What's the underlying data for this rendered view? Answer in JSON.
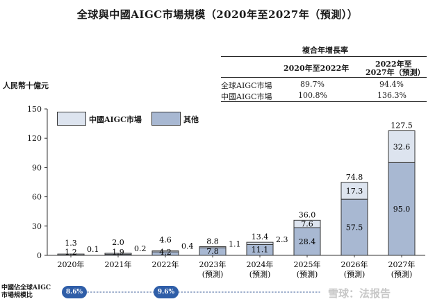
{
  "title": "全球與中國AIGC市場規模（2020年至2027年（預測））",
  "cagr_table": {
    "header": "複合年增長率",
    "col1": "2020年至2022年",
    "col2_line1": "2022年至",
    "col2_line2": "2027年（預測）",
    "rows": [
      {
        "label": "全球AIGC市場",
        "v1": "89.7%",
        "v2": "94.4%"
      },
      {
        "label": "中國AIGC市場",
        "v1": "100.8%",
        "v2": "136.3%"
      }
    ]
  },
  "y_unit": "人民幣十億元",
  "legend": {
    "china": "中國AIGC市場",
    "other": "其他"
  },
  "share": {
    "label_line1": "中國佔全球AIGC",
    "label_line2": "市場規模比",
    "pills": [
      "8.6%",
      "9.6%"
    ]
  },
  "watermark": "雪球：法报告",
  "colors": {
    "china": "#dde4ef",
    "other": "#a8b8d2",
    "stroke": "#333333",
    "pill": "#2f5ea8"
  },
  "chart_data": {
    "type": "bar",
    "stacked": true,
    "categories": [
      "2020年",
      "2021年",
      "2022年",
      "2023年\n(預測)",
      "2024年\n(預測)",
      "2025年\n(預測)",
      "2026年\n(預測)",
      "2027年\n(預測)"
    ],
    "series": [
      {
        "name": "中國AIGC市場",
        "values": [
          0.1,
          0.2,
          0.4,
          1.1,
          2.3,
          7.6,
          17.3,
          32.6
        ]
      },
      {
        "name": "其他",
        "values": [
          1.2,
          1.9,
          4.2,
          7.8,
          11.1,
          28.4,
          57.5,
          95.0
        ]
      }
    ],
    "totals": [
      1.3,
      2.0,
      4.6,
      8.8,
      13.4,
      36.0,
      74.8,
      127.5
    ],
    "ylim": [
      0,
      150
    ],
    "yticks": [
      0,
      30,
      60,
      90,
      120,
      150
    ],
    "ylabel": "人民幣十億元",
    "legend_position": "top-left",
    "grid": false
  }
}
